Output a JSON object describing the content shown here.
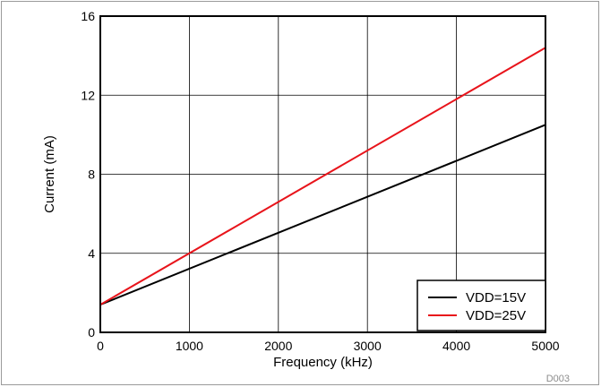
{
  "chart_data": {
    "type": "line",
    "xlabel": "Frequency (kHz)",
    "ylabel": "Current (mA)",
    "xlim": [
      0,
      5000
    ],
    "ylim": [
      0,
      16
    ],
    "xticks": [
      0,
      1000,
      2000,
      3000,
      4000,
      5000
    ],
    "yticks": [
      0,
      4,
      8,
      12,
      16
    ],
    "grid": true,
    "legend_position": "bottom-right",
    "figure_id": "D003",
    "series": [
      {
        "name": "VDD=15V",
        "color": "#000000",
        "x": [
          0,
          5000
        ],
        "y": [
          1.4,
          10.5
        ]
      },
      {
        "name": "VDD=25V",
        "color": "#e8141b",
        "x": [
          0,
          5000
        ],
        "y": [
          1.4,
          14.4
        ]
      }
    ]
  }
}
